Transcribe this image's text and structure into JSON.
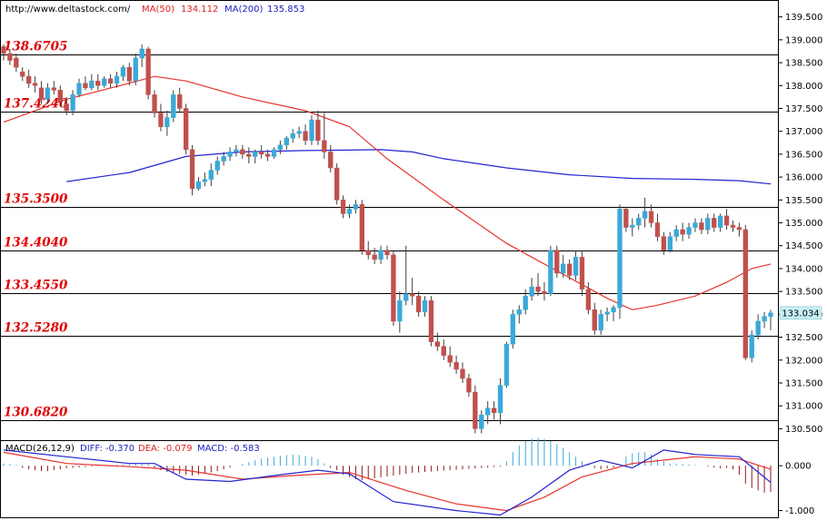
{
  "header": {
    "site": "http://www.deltastock.com/",
    "ma50_label": "MA(50)",
    "ma50_value": "134.112",
    "ma200_label": "MA(200)",
    "ma200_value": "135.853"
  },
  "macd_header": {
    "label": "MACD(26,12,9)",
    "diff": "DIFF: -0.370",
    "dea": "DEA: -0.079",
    "macd": "MACD: -0.583"
  },
  "current_price": "133.034",
  "colors": {
    "up": "#3aa9d8",
    "down": "#c0504d",
    "ma50": "#e8322b",
    "ma200": "#2323d0",
    "level_text": "#e00000",
    "price_tag": "#c6f0f5"
  },
  "chart_data": [
    {
      "type": "candlestick",
      "title": "",
      "ylim": [
        130.25,
        139.85
      ],
      "y_ticks": [
        "130.500",
        "131.000",
        "131.500",
        "132.000",
        "132.500",
        "133.000",
        "133.500",
        "134.000",
        "134.500",
        "135.000",
        "135.500",
        "136.000",
        "136.500",
        "137.000",
        "137.500",
        "138.000",
        "138.500",
        "139.000",
        "139.500"
      ],
      "levels": [
        {
          "value": 138.6705,
          "label": "138.6705"
        },
        {
          "value": 137.424,
          "label": "137.4240"
        },
        {
          "value": 135.35,
          "label": "135.3500"
        },
        {
          "value": 134.404,
          "label": "134.4040"
        },
        {
          "value": 133.455,
          "label": "133.4550"
        },
        {
          "value": 132.528,
          "label": "132.5280"
        },
        {
          "value": 130.682,
          "label": "130.6820"
        }
      ],
      "candles": [
        [
          138.85,
          138.9,
          138.55,
          138.7
        ],
        [
          138.7,
          138.8,
          138.45,
          138.55
        ],
        [
          138.6,
          138.7,
          138.3,
          138.4
        ],
        [
          138.3,
          138.4,
          138.1,
          138.2
        ],
        [
          138.2,
          138.35,
          137.95,
          138.05
        ],
        [
          138.05,
          138.2,
          137.85,
          138.0
        ],
        [
          137.95,
          138.1,
          137.6,
          137.7
        ],
        [
          137.7,
          138.05,
          137.6,
          137.95
        ],
        [
          137.95,
          138.1,
          137.8,
          137.9
        ],
        [
          137.9,
          138.0,
          137.55,
          137.65
        ],
        [
          137.6,
          137.75,
          137.35,
          137.45
        ],
        [
          137.45,
          137.9,
          137.35,
          137.8
        ],
        [
          137.8,
          138.15,
          137.75,
          138.05
        ],
        [
          138.05,
          138.2,
          137.9,
          137.95
        ],
        [
          137.95,
          138.25,
          137.9,
          138.1
        ],
        [
          138.1,
          138.25,
          137.9,
          138.0
        ],
        [
          138.0,
          138.2,
          137.95,
          138.15
        ],
        [
          138.15,
          138.25,
          137.95,
          138.05
        ],
        [
          138.05,
          138.3,
          137.95,
          138.2
        ],
        [
          138.2,
          138.45,
          138.1,
          138.4
        ],
        [
          138.4,
          138.5,
          138.0,
          138.1
        ],
        [
          138.1,
          138.7,
          138.0,
          138.6
        ],
        [
          138.6,
          138.9,
          138.4,
          138.8
        ],
        [
          138.8,
          138.85,
          137.7,
          137.8
        ],
        [
          137.8,
          137.9,
          137.3,
          137.4
        ],
        [
          137.4,
          137.6,
          137.0,
          137.1
        ],
        [
          137.1,
          137.45,
          136.9,
          137.3
        ],
        [
          137.3,
          137.9,
          137.2,
          137.8
        ],
        [
          137.8,
          137.95,
          137.4,
          137.5
        ],
        [
          137.5,
          137.6,
          136.5,
          136.6
        ],
        [
          136.6,
          136.7,
          135.6,
          135.75
        ],
        [
          135.75,
          136.0,
          135.7,
          135.9
        ],
        [
          135.9,
          136.1,
          135.8,
          135.95
        ],
        [
          135.95,
          136.3,
          135.8,
          136.15
        ],
        [
          136.15,
          136.45,
          136.05,
          136.35
        ],
        [
          136.35,
          136.55,
          136.25,
          136.45
        ],
        [
          136.45,
          136.65,
          136.35,
          136.55
        ],
        [
          136.55,
          136.7,
          136.45,
          136.6
        ],
        [
          136.6,
          136.7,
          136.4,
          136.5
        ],
        [
          136.5,
          136.65,
          136.3,
          136.45
        ],
        [
          136.45,
          136.6,
          136.3,
          136.55
        ],
        [
          136.55,
          136.7,
          136.4,
          136.5
        ],
        [
          136.5,
          136.6,
          136.35,
          136.45
        ],
        [
          136.45,
          136.65,
          136.4,
          136.6
        ],
        [
          136.6,
          136.8,
          136.5,
          136.7
        ],
        [
          136.7,
          136.9,
          136.6,
          136.85
        ],
        [
          136.85,
          137.05,
          136.75,
          136.95
        ],
        [
          136.95,
          137.1,
          136.85,
          137.0
        ],
        [
          137.0,
          137.15,
          136.7,
          136.8
        ],
        [
          136.8,
          137.35,
          136.7,
          137.25
        ],
        [
          137.25,
          137.45,
          136.7,
          136.8
        ],
        [
          136.8,
          137.4,
          136.4,
          136.55
        ],
        [
          136.55,
          136.7,
          136.1,
          136.2
        ],
        [
          136.2,
          136.3,
          135.4,
          135.5
        ],
        [
          135.5,
          135.6,
          135.1,
          135.2
        ],
        [
          135.2,
          135.4,
          135.1,
          135.3
        ],
        [
          135.3,
          135.5,
          135.2,
          135.4
        ],
        [
          135.4,
          135.5,
          134.3,
          134.4
        ],
        [
          134.4,
          134.6,
          134.2,
          134.3
        ],
        [
          134.3,
          134.45,
          134.1,
          134.2
        ],
        [
          134.2,
          134.5,
          134.1,
          134.4
        ],
        [
          134.4,
          134.5,
          134.2,
          134.3
        ],
        [
          134.3,
          134.4,
          132.75,
          132.85
        ],
        [
          132.85,
          133.5,
          132.6,
          133.3
        ],
        [
          133.3,
          134.5,
          133.2,
          133.45
        ],
        [
          133.45,
          133.8,
          133.2,
          133.4
        ],
        [
          133.4,
          133.5,
          132.95,
          133.05
        ],
        [
          133.05,
          133.4,
          132.95,
          133.3
        ],
        [
          133.3,
          133.4,
          132.3,
          132.4
        ],
        [
          132.4,
          132.6,
          132.2,
          132.3
        ],
        [
          132.3,
          132.45,
          132.0,
          132.1
        ],
        [
          132.1,
          132.3,
          131.85,
          131.95
        ],
        [
          131.95,
          132.1,
          131.7,
          131.8
        ],
        [
          131.8,
          131.95,
          131.5,
          131.6
        ],
        [
          131.6,
          131.7,
          131.2,
          131.3
        ],
        [
          131.3,
          131.45,
          130.4,
          130.5
        ],
        [
          130.5,
          130.9,
          130.4,
          130.8
        ],
        [
          130.8,
          131.1,
          130.6,
          130.95
        ],
        [
          130.95,
          131.1,
          130.7,
          130.85
        ],
        [
          130.85,
          131.6,
          130.6,
          131.45
        ],
        [
          131.45,
          132.4,
          131.4,
          132.35
        ],
        [
          132.35,
          133.1,
          132.25,
          133.0
        ],
        [
          133.0,
          133.2,
          132.8,
          133.1
        ],
        [
          133.1,
          133.55,
          133.0,
          133.4
        ],
        [
          133.4,
          133.8,
          133.3,
          133.6
        ],
        [
          133.6,
          133.9,
          133.4,
          133.5
        ],
        [
          133.5,
          133.7,
          133.3,
          133.45
        ],
        [
          133.45,
          134.5,
          133.4,
          134.4
        ],
        [
          134.4,
          134.5,
          133.8,
          133.9
        ],
        [
          133.9,
          134.3,
          133.8,
          134.1
        ],
        [
          134.1,
          134.2,
          133.75,
          133.85
        ],
        [
          133.85,
          134.4,
          133.75,
          134.25
        ],
        [
          134.25,
          134.4,
          133.4,
          133.55
        ],
        [
          133.55,
          133.7,
          133.0,
          133.1
        ],
        [
          133.1,
          133.25,
          132.55,
          132.65
        ],
        [
          132.65,
          133.1,
          132.55,
          133.0
        ],
        [
          133.0,
          133.15,
          132.85,
          133.05
        ],
        [
          133.05,
          133.2,
          132.85,
          133.15
        ],
        [
          133.15,
          135.4,
          132.9,
          135.3
        ],
        [
          135.3,
          135.35,
          134.8,
          134.9
        ],
        [
          134.9,
          135.1,
          134.7,
          134.95
        ],
        [
          134.95,
          135.2,
          134.85,
          135.1
        ],
        [
          135.1,
          135.55,
          134.9,
          135.25
        ],
        [
          135.25,
          135.4,
          134.9,
          135.0
        ],
        [
          135.0,
          135.2,
          134.6,
          134.7
        ],
        [
          134.7,
          134.8,
          134.3,
          134.4
        ],
        [
          134.4,
          134.8,
          134.35,
          134.7
        ],
        [
          134.7,
          134.95,
          134.6,
          134.85
        ],
        [
          134.85,
          135.0,
          134.6,
          134.75
        ],
        [
          134.75,
          135.0,
          134.65,
          134.9
        ],
        [
          134.9,
          135.1,
          134.8,
          135.0
        ],
        [
          135.0,
          135.1,
          134.75,
          134.85
        ],
        [
          134.85,
          135.2,
          134.75,
          135.1
        ],
        [
          135.1,
          135.2,
          134.8,
          134.9
        ],
        [
          134.9,
          135.2,
          134.8,
          135.15
        ],
        [
          135.15,
          135.3,
          134.85,
          134.95
        ],
        [
          134.95,
          135.05,
          134.8,
          134.9
        ],
        [
          134.9,
          135.0,
          134.7,
          134.85
        ],
        [
          134.85,
          134.95,
          132.0,
          132.05
        ],
        [
          132.05,
          132.65,
          131.95,
          132.55
        ],
        [
          132.55,
          133.0,
          132.45,
          132.85
        ],
        [
          132.85,
          133.05,
          132.7,
          132.95
        ],
        [
          132.95,
          133.1,
          132.65,
          133.03
        ]
      ],
      "ma50": [
        [
          0,
          137.2
        ],
        [
          10,
          137.7
        ],
        [
          20,
          138.05
        ],
        [
          24,
          138.2
        ],
        [
          29,
          138.1
        ],
        [
          38,
          137.75
        ],
        [
          48,
          137.45
        ],
        [
          55,
          137.1
        ],
        [
          61,
          136.4
        ],
        [
          70,
          135.5
        ],
        [
          80,
          134.55
        ],
        [
          90,
          133.8
        ],
        [
          96,
          133.35
        ],
        [
          100,
          133.1
        ],
        [
          104,
          133.2
        ],
        [
          110,
          133.4
        ],
        [
          115,
          133.7
        ],
        [
          119,
          134.0
        ],
        [
          122,
          134.1
        ]
      ],
      "ma200": [
        [
          10,
          135.9
        ],
        [
          20,
          136.1
        ],
        [
          29,
          136.45
        ],
        [
          38,
          136.55
        ],
        [
          48,
          136.58
        ],
        [
          60,
          136.6
        ],
        [
          65,
          136.55
        ],
        [
          70,
          136.4
        ],
        [
          80,
          136.2
        ],
        [
          90,
          136.05
        ],
        [
          100,
          135.97
        ],
        [
          110,
          135.95
        ],
        [
          117,
          135.92
        ],
        [
          122,
          135.85
        ]
      ]
    },
    {
      "type": "macd",
      "title": "",
      "ylim": [
        -1.15,
        0.55
      ],
      "y_ticks": [
        "0.000",
        "-1.000"
      ],
      "diff": [
        [
          0,
          0.35
        ],
        [
          10,
          0.2
        ],
        [
          20,
          0.05
        ],
        [
          24,
          0.05
        ],
        [
          29,
          -0.3
        ],
        [
          36,
          -0.35
        ],
        [
          44,
          -0.2
        ],
        [
          50,
          -0.1
        ],
        [
          55,
          -0.18
        ],
        [
          62,
          -0.8
        ],
        [
          72,
          -1.0
        ],
        [
          79,
          -1.1
        ],
        [
          84,
          -0.7
        ],
        [
          90,
          -0.1
        ],
        [
          95,
          0.12
        ],
        [
          100,
          -0.05
        ],
        [
          105,
          0.35
        ],
        [
          110,
          0.25
        ],
        [
          117,
          0.2
        ],
        [
          122,
          -0.37
        ]
      ],
      "dea": [
        [
          0,
          0.3
        ],
        [
          10,
          0.05
        ],
        [
          20,
          -0.02
        ],
        [
          29,
          -0.1
        ],
        [
          38,
          -0.3
        ],
        [
          46,
          -0.22
        ],
        [
          55,
          -0.15
        ],
        [
          64,
          -0.55
        ],
        [
          72,
          -0.85
        ],
        [
          80,
          -1.0
        ],
        [
          86,
          -0.7
        ],
        [
          92,
          -0.25
        ],
        [
          100,
          0.05
        ],
        [
          110,
          0.2
        ],
        [
          117,
          0.15
        ],
        [
          122,
          -0.079
        ]
      ],
      "macd_hist": [
        0.05,
        0.04,
        0.02,
        -0.05,
        -0.08,
        -0.1,
        -0.12,
        -0.12,
        -0.1,
        -0.08,
        -0.06,
        -0.05,
        -0.04,
        -0.03,
        -0.02,
        -0.01,
        0.0,
        0.01,
        0.02,
        0.03,
        0.04,
        0.05,
        0.06,
        0.04,
        -0.05,
        -0.1,
        -0.14,
        -0.16,
        -0.18,
        -0.2,
        -0.22,
        -0.2,
        -0.18,
        -0.15,
        -0.12,
        -0.08,
        -0.04,
        0.0,
        0.04,
        0.08,
        0.12,
        0.16,
        0.18,
        0.2,
        0.22,
        0.24,
        0.25,
        0.24,
        0.22,
        0.2,
        0.15,
        0.05,
        -0.05,
        -0.1,
        -0.2,
        -0.25,
        -0.3,
        -0.32,
        -0.3,
        -0.28,
        -0.26,
        -0.24,
        -0.22,
        -0.2,
        -0.18,
        -0.16,
        -0.15,
        -0.14,
        -0.13,
        -0.12,
        -0.11,
        -0.1,
        -0.09,
        -0.08,
        -0.07,
        -0.06,
        -0.05,
        -0.04,
        -0.03,
        -0.02,
        0.1,
        0.3,
        0.45,
        0.55,
        0.6,
        0.62,
        0.6,
        0.55,
        0.48,
        0.4,
        0.3,
        0.2,
        0.1,
        0.05,
        -0.05,
        -0.08,
        -0.06,
        -0.04,
        0.0,
        0.2,
        0.28,
        0.3,
        0.3,
        0.25,
        0.15,
        0.1,
        0.05,
        0.04,
        0.04,
        0.03,
        0.02,
        0.0,
        -0.02,
        -0.04,
        -0.06,
        -0.05,
        -0.08,
        -0.2,
        -0.4,
        -0.5,
        -0.55,
        -0.6,
        -0.58
      ]
    }
  ]
}
